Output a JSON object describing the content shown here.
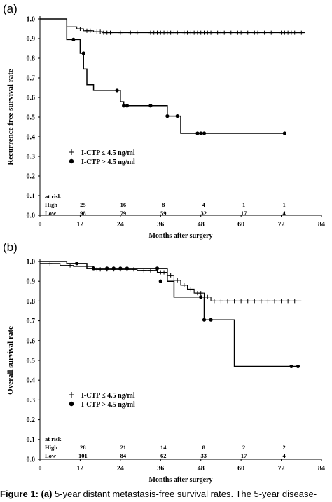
{
  "chart_data": [
    {
      "panel_label": "(a)",
      "type": "line",
      "xlabel": "Months after surgery",
      "ylabel": "Recurrence free survival rate",
      "xlim": [
        0,
        84
      ],
      "ylim": [
        0.0,
        1.0
      ],
      "xticks": [
        "0",
        "12",
        "24",
        "36",
        "48",
        "60",
        "72",
        "84"
      ],
      "yticks": [
        "0.0",
        "0.1",
        "0.2",
        "0.3",
        "0.4",
        "0.5",
        "0.6",
        "0.7",
        "0.8",
        "0.9",
        "1.0"
      ],
      "legend_placement": "lower-left",
      "series": [
        {
          "name": "I-CTP ≤ 4.5 ng/ml",
          "marker": "plus",
          "steps": [
            [
              0,
              1.0
            ],
            [
              8,
              0.96
            ],
            [
              11,
              0.95
            ],
            [
              13,
              0.94
            ],
            [
              16,
              0.935
            ],
            [
              19,
              0.93
            ],
            [
              79,
              0.93
            ]
          ],
          "censored": [
            [
              12,
              0.95
            ],
            [
              14,
              0.94
            ],
            [
              15,
              0.94
            ],
            [
              17,
              0.935
            ],
            [
              18,
              0.935
            ],
            [
              19,
              0.93
            ],
            [
              20,
              0.93
            ],
            [
              21,
              0.93
            ],
            [
              24,
              0.93
            ],
            [
              27,
              0.93
            ],
            [
              29,
              0.93
            ],
            [
              33,
              0.93
            ],
            [
              34,
              0.93
            ],
            [
              35,
              0.93
            ],
            [
              36,
              0.93
            ],
            [
              37,
              0.93
            ],
            [
              38,
              0.93
            ],
            [
              39,
              0.93
            ],
            [
              40,
              0.93
            ],
            [
              41,
              0.93
            ],
            [
              43,
              0.93
            ],
            [
              44,
              0.93
            ],
            [
              45,
              0.93
            ],
            [
              46,
              0.93
            ],
            [
              47,
              0.93
            ],
            [
              48,
              0.93
            ],
            [
              49,
              0.93
            ],
            [
              50,
              0.93
            ],
            [
              51,
              0.93
            ],
            [
              53,
              0.93
            ],
            [
              54,
              0.93
            ],
            [
              55,
              0.93
            ],
            [
              57,
              0.93
            ],
            [
              59,
              0.93
            ],
            [
              60,
              0.93
            ],
            [
              62,
              0.93
            ],
            [
              64,
              0.93
            ],
            [
              65,
              0.93
            ],
            [
              67,
              0.93
            ],
            [
              69,
              0.93
            ],
            [
              72,
              0.93
            ],
            [
              73,
              0.93
            ],
            [
              74,
              0.93
            ],
            [
              75,
              0.93
            ],
            [
              76,
              0.93
            ],
            [
              77,
              0.93
            ],
            [
              78,
              0.93
            ]
          ]
        },
        {
          "name": "I-CTP > 4.5 ng/ml",
          "marker": "dot",
          "steps": [
            [
              0,
              1.0
            ],
            [
              8,
              0.895
            ],
            [
              12,
              0.825
            ],
            [
              13,
              0.745
            ],
            [
              14,
              0.665
            ],
            [
              16,
              0.636
            ],
            [
              24,
              0.578
            ],
            [
              25,
              0.558
            ],
            [
              38,
              0.505
            ],
            [
              42,
              0.418
            ],
            [
              73,
              0.418
            ]
          ],
          "censored": [
            [
              10,
              0.895
            ],
            [
              13,
              0.825
            ],
            [
              23,
              0.636
            ],
            [
              25,
              0.558
            ],
            [
              26,
              0.558
            ],
            [
              33,
              0.558
            ],
            [
              38,
              0.505
            ],
            [
              41,
              0.505
            ],
            [
              47,
              0.418
            ],
            [
              48,
              0.418
            ],
            [
              49,
              0.418
            ],
            [
              73,
              0.418
            ]
          ]
        }
      ],
      "at_risk": {
        "label": "at risk",
        "rows": [
          {
            "group": "High",
            "values": [
              "25",
              "16",
              "8",
              "4",
              "1",
              "1"
            ]
          },
          {
            "group": "Low",
            "values": [
              "98",
              "79",
              "59",
              "32",
              "17",
              "4"
            ]
          }
        ],
        "times": [
          12,
          24,
          36,
          48,
          60,
          72
        ]
      }
    },
    {
      "panel_label": "(b)",
      "type": "line",
      "xlabel": "Months after surgery",
      "ylabel": "Overall survival rate",
      "xlim": [
        0,
        84
      ],
      "ylim": [
        0.0,
        1.0
      ],
      "xticks": [
        "0",
        "12",
        "24",
        "36",
        "48",
        "60",
        "72",
        "84"
      ],
      "yticks": [
        "0.0",
        "0.1",
        "0.2",
        "0.3",
        "0.4",
        "0.5",
        "0.6",
        "0.7",
        "0.8",
        "0.9",
        "1.0"
      ],
      "legend_placement": "lower-left",
      "series": [
        {
          "name": "I-CTP ≤ 4.5 ng/ml",
          "marker": "plus",
          "steps": [
            [
              0,
              0.99
            ],
            [
              6,
              0.98
            ],
            [
              10,
              0.975
            ],
            [
              16,
              0.96
            ],
            [
              29,
              0.955
            ],
            [
              35,
              0.945
            ],
            [
              38,
              0.93
            ],
            [
              40,
              0.905
            ],
            [
              42,
              0.88
            ],
            [
              44,
              0.86
            ],
            [
              46,
              0.84
            ],
            [
              49,
              0.82
            ],
            [
              51,
              0.8
            ],
            [
              78,
              0.8
            ]
          ],
          "censored": [
            [
              3,
              0.99
            ],
            [
              9,
              0.98
            ],
            [
              14,
              0.975
            ],
            [
              17,
              0.96
            ],
            [
              18,
              0.96
            ],
            [
              20,
              0.96
            ],
            [
              22,
              0.96
            ],
            [
              24,
              0.96
            ],
            [
              26,
              0.96
            ],
            [
              28,
              0.96
            ],
            [
              31,
              0.955
            ],
            [
              33,
              0.955
            ],
            [
              36,
              0.945
            ],
            [
              37,
              0.945
            ],
            [
              39,
              0.93
            ],
            [
              41,
              0.905
            ],
            [
              43,
              0.88
            ],
            [
              45,
              0.86
            ],
            [
              47,
              0.84
            ],
            [
              48,
              0.84
            ],
            [
              50,
              0.82
            ],
            [
              52,
              0.8
            ],
            [
              54,
              0.8
            ],
            [
              56,
              0.8
            ],
            [
              58,
              0.8
            ],
            [
              60,
              0.8
            ],
            [
              62,
              0.8
            ],
            [
              64,
              0.8
            ],
            [
              66,
              0.8
            ],
            [
              68,
              0.8
            ],
            [
              70,
              0.8
            ],
            [
              72,
              0.8
            ],
            [
              74,
              0.8
            ],
            [
              76,
              0.8
            ]
          ]
        },
        {
          "name": "I-CTP > 4.5 ng/ml",
          "marker": "dot",
          "steps": [
            [
              0,
              1.0
            ],
            [
              8,
              0.99
            ],
            [
              14,
              0.965
            ],
            [
              38,
              0.9
            ],
            [
              40,
              0.82
            ],
            [
              49,
              0.705
            ],
            [
              58,
              0.47
            ],
            [
              77,
              0.47
            ]
          ],
          "censored": [
            [
              11,
              0.99
            ],
            [
              16,
              0.965
            ],
            [
              20,
              0.965
            ],
            [
              22,
              0.965
            ],
            [
              24,
              0.965
            ],
            [
              26,
              0.965
            ],
            [
              35,
              0.965
            ],
            [
              36,
              0.9
            ],
            [
              48,
              0.82
            ],
            [
              49,
              0.705
            ],
            [
              51,
              0.705
            ],
            [
              75,
              0.47
            ],
            [
              77,
              0.47
            ]
          ]
        }
      ],
      "at_risk": {
        "label": "at risk",
        "rows": [
          {
            "group": "High",
            "values": [
              "28",
              "21",
              "14",
              "8",
              "2",
              "2"
            ]
          },
          {
            "group": "Low",
            "values": [
              "101",
              "84",
              "62",
              "33",
              "17",
              "4"
            ]
          }
        ],
        "times": [
          12,
          24,
          36,
          48,
          60,
          72
        ]
      }
    }
  ],
  "caption": {
    "label": "Figure 1:",
    "panel": "(a)",
    "text": "5-year distant metastasis-free survival rates. The 5-year disease-"
  }
}
